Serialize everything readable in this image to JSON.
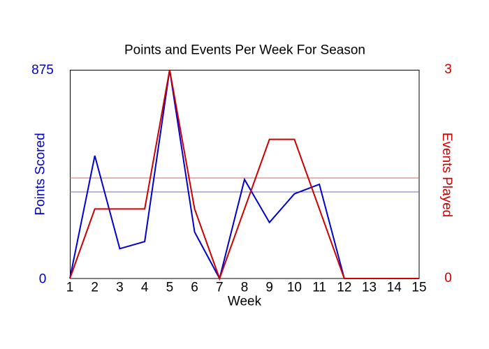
{
  "title": "Points and Events Per Week For Season",
  "chart_data": {
    "type": "line",
    "title": "Points and Events Per Week For Season",
    "x": [
      1,
      2,
      3,
      4,
      5,
      6,
      7,
      8,
      9,
      10,
      11,
      12,
      13,
      14,
      15
    ],
    "xlabel": "Week",
    "series": [
      {
        "name": "Points Scored",
        "axis": "left",
        "color": "#0000CC",
        "values": [
          0,
          515,
          125,
          155,
          875,
          195,
          0,
          415,
          235,
          355,
          395,
          0,
          0,
          0,
          0
        ]
      },
      {
        "name": "Events Played",
        "axis": "right",
        "color": "#CC0000",
        "values": [
          0,
          1,
          1,
          1,
          3,
          1,
          0,
          1,
          2,
          2,
          1,
          0,
          0,
          0,
          0
        ]
      }
    ],
    "left_axis": {
      "label": "Points Scored",
      "color": "#0000CC",
      "min": 0,
      "max": 875,
      "tick_labels": [
        "0",
        "875"
      ]
    },
    "right_axis": {
      "label": "Events Played",
      "color": "#CC0000",
      "min": 0,
      "max": 3,
      "tick_labels": [
        "0",
        "3"
      ]
    },
    "reference_lines": [
      {
        "name": "points-average",
        "axis": "left",
        "value": 362.8,
        "color": "#6C6CB0"
      },
      {
        "name": "events-average",
        "axis": "right",
        "value": 1.444,
        "color": "#C46A6A"
      }
    ],
    "grid": "off",
    "legend": "none",
    "background": "#FFFFFF",
    "plot_border_color": "#000000",
    "title_color": "#000000",
    "xlim": [
      1,
      15
    ],
    "left_ylim": [
      0,
      875
    ],
    "right_ylim": [
      0,
      3
    ]
  }
}
